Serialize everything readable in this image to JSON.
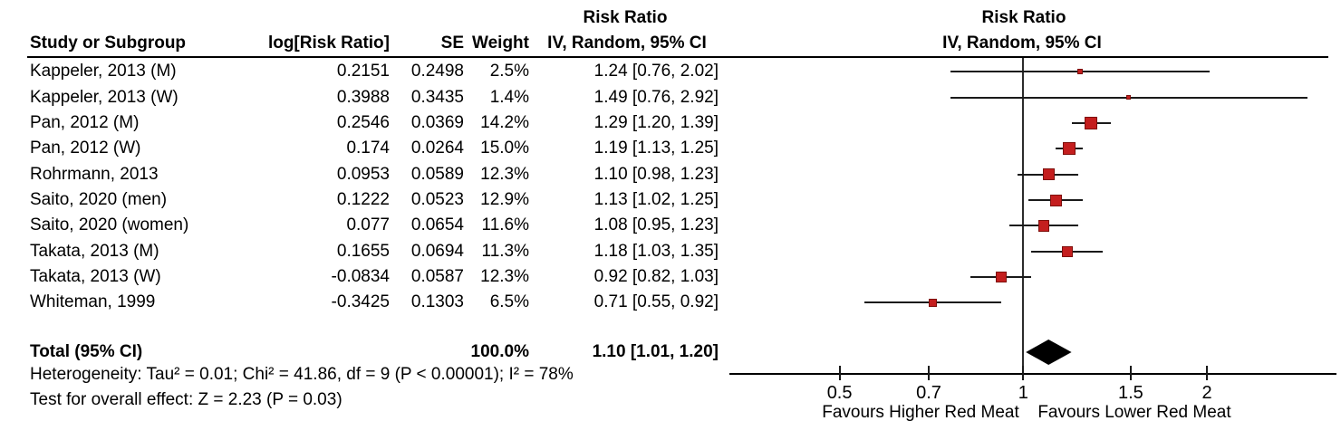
{
  "table_header": {
    "study": "Study or Subgroup",
    "log_rr": "log[Risk Ratio]",
    "se": "SE",
    "weight": "Weight",
    "effect_line1": "Risk Ratio",
    "effect_line2": "IV, Random, 95% CI"
  },
  "plot_header": {
    "line1": "Risk Ratio",
    "line2": "IV, Random, 95% CI"
  },
  "chart_data": {
    "type": "forest",
    "x_scale": "log",
    "x_ticks": [
      {
        "value": 0.5,
        "label": "0.5"
      },
      {
        "value": 0.7,
        "label": "0.7"
      },
      {
        "value": 1,
        "label": "1"
      },
      {
        "value": 1.5,
        "label": "1.5"
      },
      {
        "value": 2,
        "label": "2"
      }
    ],
    "x_axis_label_left": "Favours Higher Red Meat",
    "x_axis_label_right": "Favours Lower Red Meat",
    "studies": [
      {
        "name": "Kappeler, 2013 (M)",
        "log_rr": "0.2151",
        "se": "0.2498",
        "weight": "2.5%",
        "weight_pct": 2.5,
        "ci_text": "1.24 [0.76, 2.02]",
        "rr": 1.24,
        "ci_low": 0.76,
        "ci_high": 2.02
      },
      {
        "name": "Kappeler, 2013 (W)",
        "log_rr": "0.3988",
        "se": "0.3435",
        "weight": "1.4%",
        "weight_pct": 1.4,
        "ci_text": "1.49 [0.76, 2.92]",
        "rr": 1.49,
        "ci_low": 0.76,
        "ci_high": 2.92
      },
      {
        "name": "Pan, 2012 (M)",
        "log_rr": "0.2546",
        "se": "0.0369",
        "weight": "14.2%",
        "weight_pct": 14.2,
        "ci_text": "1.29 [1.20, 1.39]",
        "rr": 1.29,
        "ci_low": 1.2,
        "ci_high": 1.39
      },
      {
        "name": "Pan, 2012 (W)",
        "log_rr": "0.174",
        "se": "0.0264",
        "weight": "15.0%",
        "weight_pct": 15.0,
        "ci_text": "1.19 [1.13, 1.25]",
        "rr": 1.19,
        "ci_low": 1.13,
        "ci_high": 1.25
      },
      {
        "name": "Rohrmann, 2013",
        "log_rr": "0.0953",
        "se": "0.0589",
        "weight": "12.3%",
        "weight_pct": 12.3,
        "ci_text": "1.10 [0.98, 1.23]",
        "rr": 1.1,
        "ci_low": 0.98,
        "ci_high": 1.23
      },
      {
        "name": "Saito, 2020 (men)",
        "log_rr": "0.1222",
        "se": "0.0523",
        "weight": "12.9%",
        "weight_pct": 12.9,
        "ci_text": "1.13 [1.02, 1.25]",
        "rr": 1.13,
        "ci_low": 1.02,
        "ci_high": 1.25
      },
      {
        "name": "Saito, 2020 (women)",
        "log_rr": "0.077",
        "se": "0.0654",
        "weight": "11.6%",
        "weight_pct": 11.6,
        "ci_text": "1.08 [0.95, 1.23]",
        "rr": 1.08,
        "ci_low": 0.95,
        "ci_high": 1.23
      },
      {
        "name": "Takata, 2013 (M)",
        "log_rr": "0.1655",
        "se": "0.0694",
        "weight": "11.3%",
        "weight_pct": 11.3,
        "ci_text": "1.18 [1.03, 1.35]",
        "rr": 1.18,
        "ci_low": 1.03,
        "ci_high": 1.35
      },
      {
        "name": "Takata, 2013 (W)",
        "log_rr": "-0.0834",
        "se": "0.0587",
        "weight": "12.3%",
        "weight_pct": 12.3,
        "ci_text": "0.92 [0.82, 1.03]",
        "rr": 0.92,
        "ci_low": 0.82,
        "ci_high": 1.03
      },
      {
        "name": "Whiteman, 1999",
        "log_rr": "-0.3425",
        "se": "0.1303",
        "weight": "6.5%",
        "weight_pct": 6.5,
        "ci_text": "0.71 [0.55, 0.92]",
        "rr": 0.71,
        "ci_low": 0.55,
        "ci_high": 0.92
      }
    ],
    "total": {
      "label": "Total (95% CI)",
      "weight": "100.0%",
      "ci_text": "1.10 [1.01, 1.20]",
      "rr": 1.1,
      "ci_low": 1.01,
      "ci_high": 1.2
    }
  },
  "footnotes": {
    "heterogeneity": "Heterogeneity: Tau² = 0.01; Chi² = 41.86, df = 9 (P < 0.00001); I² = 78%",
    "overall_effect": "Test for overall effect: Z = 2.23 (P = 0.03)"
  },
  "colors": {
    "marker_fill": "#c41e1e",
    "marker_border": "#7e0f0b",
    "line": "#1a1a1a",
    "diamond": "#000000"
  }
}
